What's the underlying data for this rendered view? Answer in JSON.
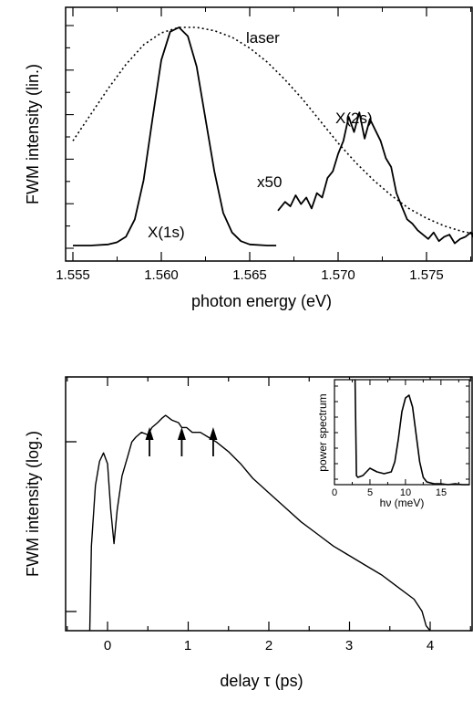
{
  "chart_data": [
    {
      "type": "line",
      "xlabel": "photon energy (eV)",
      "ylabel": "FWM intensity (lin.)",
      "xlim": [
        1.555,
        1.578
      ],
      "ylim": [
        0,
        1.04
      ],
      "xticks": [
        "1.555",
        "1.560",
        "1.565",
        "1.570",
        "1.575"
      ],
      "grid": false,
      "annotations": [
        "laser",
        "X(1s)",
        "X(2s)",
        "x50"
      ],
      "series": [
        {
          "name": "laser",
          "style": "dotted",
          "x": [
            1.555,
            1.556,
            1.557,
            1.558,
            1.559,
            1.56,
            1.561,
            1.562,
            1.563,
            1.564,
            1.565,
            1.566,
            1.567,
            1.568,
            1.569,
            1.57,
            1.571,
            1.572,
            1.573,
            1.574,
            1.575,
            1.576,
            1.577,
            1.578
          ],
          "y": [
            0.48,
            0.6,
            0.72,
            0.83,
            0.92,
            0.975,
            1.0,
            1.0,
            0.985,
            0.955,
            0.905,
            0.84,
            0.76,
            0.67,
            0.57,
            0.47,
            0.38,
            0.3,
            0.23,
            0.17,
            0.125,
            0.09,
            0.065,
            0.05
          ]
        },
        {
          "name": "X(1s)",
          "style": "solid",
          "x": [
            1.555,
            1.556,
            1.557,
            1.5575,
            1.558,
            1.5585,
            1.559,
            1.5595,
            1.56,
            1.5605,
            1.561,
            1.5615,
            1.562,
            1.5625,
            1.563,
            1.5635,
            1.564,
            1.5645,
            1.565,
            1.566,
            1.5665
          ],
          "y": [
            0.0,
            0.0,
            0.005,
            0.015,
            0.04,
            0.12,
            0.3,
            0.58,
            0.85,
            0.98,
            1.0,
            0.96,
            0.82,
            0.58,
            0.34,
            0.15,
            0.06,
            0.02,
            0.005,
            0.0,
            0.0
          ]
        },
        {
          "name": "x50",
          "style": "solid",
          "x": [
            1.5666,
            1.567,
            1.5673,
            1.5676,
            1.5679,
            1.5682,
            1.5685,
            1.5688,
            1.5691,
            1.5694,
            1.5697,
            1.57,
            1.5703,
            1.5706,
            1.5709,
            1.5712,
            1.5715,
            1.5718,
            1.5721,
            1.5724,
            1.5727,
            1.573,
            1.5733,
            1.5736,
            1.5739,
            1.5742,
            1.5745,
            1.5748,
            1.5751,
            1.5754,
            1.5757,
            1.576,
            1.5763,
            1.5766,
            1.5769,
            1.5772,
            1.5775,
            1.5778
          ],
          "y": [
            0.16,
            0.2,
            0.18,
            0.23,
            0.19,
            0.22,
            0.17,
            0.24,
            0.22,
            0.31,
            0.34,
            0.42,
            0.48,
            0.59,
            0.52,
            0.61,
            0.49,
            0.58,
            0.53,
            0.48,
            0.4,
            0.36,
            0.24,
            0.18,
            0.12,
            0.1,
            0.07,
            0.05,
            0.03,
            0.06,
            0.02,
            0.04,
            0.05,
            0.01,
            0.03,
            0.04,
            0.06,
            0.02
          ]
        }
      ]
    },
    {
      "type": "line",
      "xlabel": "delay τ (ps)",
      "ylabel": "FWM intensity (log.)",
      "xlim": [
        -0.45,
        4.55
      ],
      "ylim": [
        0,
        1
      ],
      "xticks": [
        "0",
        "1",
        "2",
        "3",
        "4"
      ],
      "log_scale_y": true,
      "grid": false,
      "arrows_at_x": [
        0.52,
        0.92,
        1.31
      ],
      "series": [
        {
          "name": "",
          "style": "solid",
          "x": [
            -0.22,
            -0.2,
            -0.15,
            -0.1,
            -0.05,
            0.0,
            0.04,
            0.08,
            0.12,
            0.18,
            0.25,
            0.3,
            0.35,
            0.42,
            0.5,
            0.55,
            0.62,
            0.68,
            0.72,
            0.8,
            0.88,
            0.92,
            0.98,
            1.05,
            1.15,
            1.25,
            1.35,
            1.5,
            1.65,
            1.8,
            2.0,
            2.2,
            2.4,
            2.6,
            2.8,
            3.0,
            3.2,
            3.4,
            3.6,
            3.8,
            3.9,
            3.95,
            4.0
          ],
          "y": [
            0.0,
            0.35,
            0.6,
            0.7,
            0.735,
            0.69,
            0.5,
            0.36,
            0.5,
            0.64,
            0.72,
            0.78,
            0.8,
            0.82,
            0.81,
            0.84,
            0.86,
            0.88,
            0.89,
            0.87,
            0.86,
            0.84,
            0.84,
            0.82,
            0.82,
            0.8,
            0.78,
            0.74,
            0.69,
            0.63,
            0.57,
            0.51,
            0.45,
            0.4,
            0.35,
            0.31,
            0.27,
            0.23,
            0.18,
            0.13,
            0.08,
            0.02,
            0.0
          ]
        }
      ],
      "inset": {
        "type": "line",
        "xlabel": "hν (meV)",
        "ylabel": "power spectrum",
        "xlim": [
          0,
          19
        ],
        "ylim": [
          0,
          1.15
        ],
        "xticks": [
          "0",
          "5",
          "10",
          "15"
        ],
        "series": [
          {
            "name": "",
            "style": "solid",
            "x": [
              2.9,
              3.0,
              3.1,
              3.3,
              4.0,
              5.0,
              6.0,
              7.0,
              8.0,
              8.5,
              9.0,
              9.5,
              10.0,
              10.5,
              11.0,
              11.5,
              12.0,
              12.5,
              13.0,
              13.5,
              14.0,
              15.0,
              16.0,
              17.0,
              18.0,
              19.0
            ],
            "y": [
              1.15,
              0.6,
              0.1,
              0.08,
              0.1,
              0.18,
              0.14,
              0.12,
              0.14,
              0.25,
              0.5,
              0.8,
              0.95,
              0.98,
              0.85,
              0.55,
              0.25,
              0.08,
              0.03,
              0.02,
              0.01,
              0.01,
              0.0,
              0.01,
              0.0,
              0.0
            ]
          }
        ]
      }
    }
  ]
}
